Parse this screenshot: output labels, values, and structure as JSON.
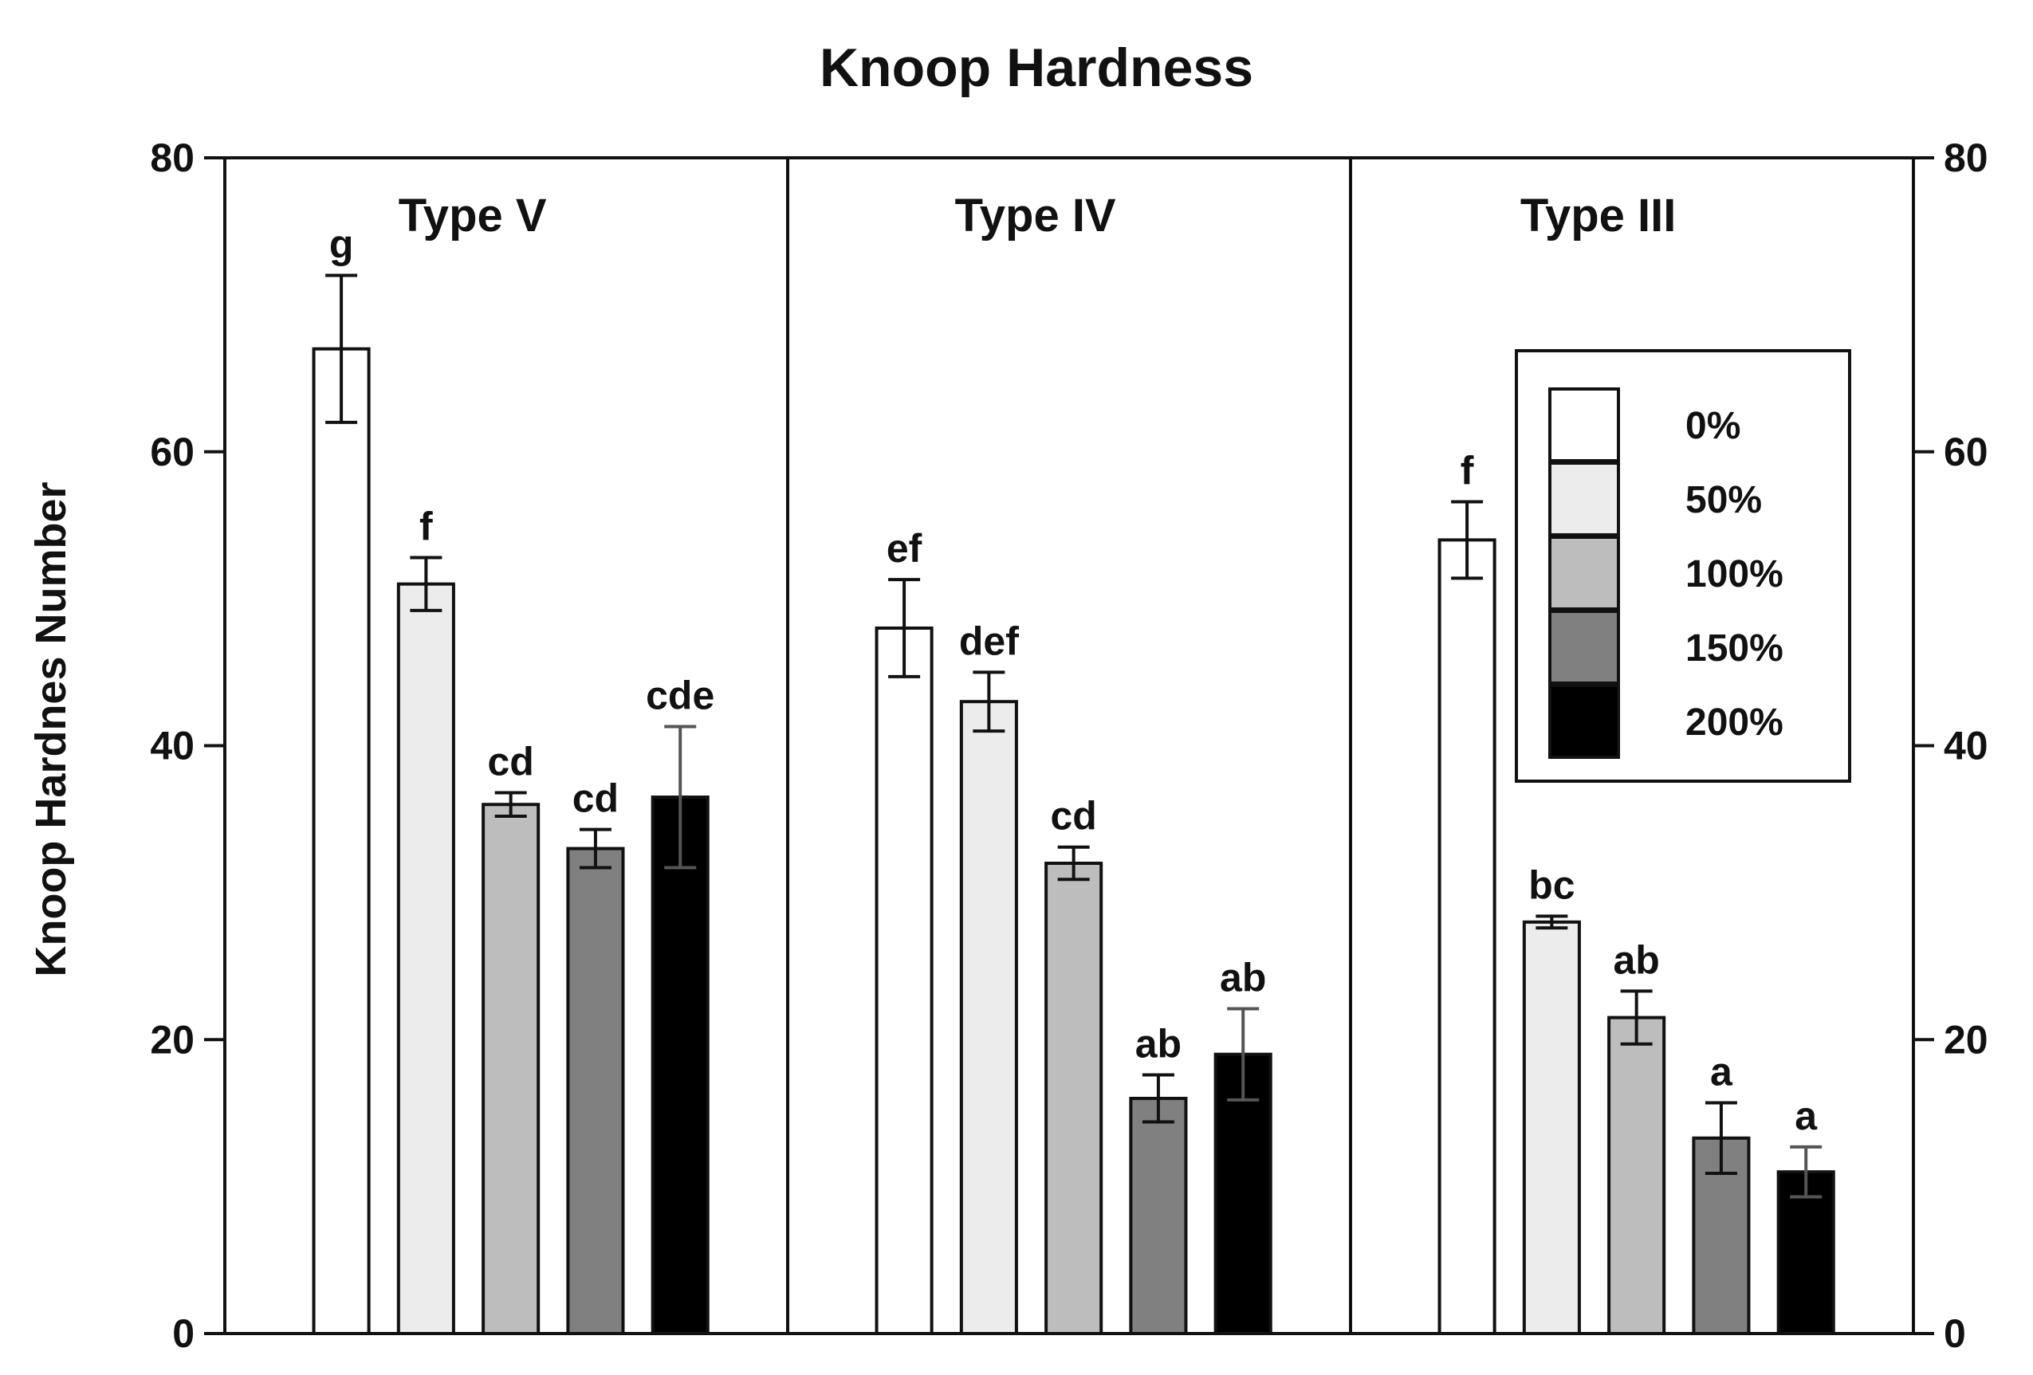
{
  "chart_data": {
    "type": "bar",
    "title": "Knoop Hardness",
    "xlabel": "",
    "ylabel": "Knoop Hardnes Number",
    "ylim": [
      0,
      80
    ],
    "yticks": [
      0,
      20,
      40,
      60,
      80
    ],
    "right_axis": true,
    "grid": false,
    "legend_position": "top-right",
    "categories": [
      "Type V",
      "Type IV",
      "Type III"
    ],
    "series": [
      {
        "name": "0%",
        "color": "#ffffff",
        "values": [
          67,
          48,
          54
        ],
        "errors": [
          5,
          3.3,
          2.6
        ],
        "letters": [
          "g",
          "ef",
          "f"
        ]
      },
      {
        "name": "50%",
        "color": "#ececec",
        "values": [
          51,
          43,
          28
        ],
        "errors": [
          1.8,
          2.0,
          0.4
        ],
        "letters": [
          "f",
          "def",
          "bc"
        ]
      },
      {
        "name": "100%",
        "color": "#bdbdbd",
        "values": [
          36,
          32,
          21.5
        ],
        "errors": [
          0.8,
          1.1,
          1.8
        ],
        "letters": [
          "cd",
          "cd",
          "ab"
        ]
      },
      {
        "name": "150%",
        "color": "#808080",
        "values": [
          33,
          16,
          13.3
        ],
        "errors": [
          1.3,
          1.6,
          2.4
        ],
        "letters": [
          "cd",
          "ab",
          "a"
        ]
      },
      {
        "name": "200%",
        "color": "#000000",
        "values": [
          36.5,
          19,
          11
        ],
        "errors": [
          4.8,
          3.1,
          1.7
        ],
        "letters": [
          "cde",
          "ab",
          "a"
        ]
      }
    ]
  }
}
